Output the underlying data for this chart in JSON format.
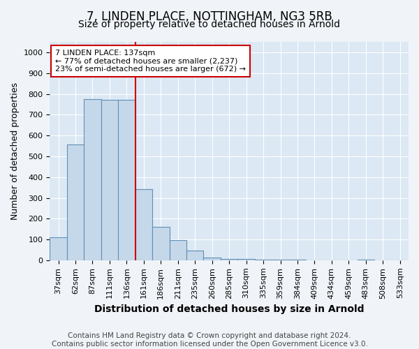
{
  "title": "7, LINDEN PLACE, NOTTINGHAM, NG3 5RB",
  "subtitle": "Size of property relative to detached houses in Arnold",
  "xlabel": "Distribution of detached houses by size in Arnold",
  "ylabel": "Number of detached properties",
  "categories": [
    "37sqm",
    "62sqm",
    "87sqm",
    "111sqm",
    "136sqm",
    "161sqm",
    "186sqm",
    "211sqm",
    "235sqm",
    "260sqm",
    "285sqm",
    "310sqm",
    "335sqm",
    "359sqm",
    "384sqm",
    "409sqm",
    "434sqm",
    "459sqm",
    "483sqm",
    "508sqm",
    "533sqm"
  ],
  "values": [
    110,
    557,
    775,
    770,
    770,
    343,
    162,
    97,
    48,
    12,
    8,
    5,
    4,
    3,
    2,
    0,
    0,
    0,
    4,
    0,
    0
  ],
  "bar_color": "#c5d8ea",
  "bar_edge_color": "#5f8fb4",
  "vline_x": 4.5,
  "vline_color": "#cc0000",
  "annotation_text": "7 LINDEN PLACE: 137sqm\n← 77% of detached houses are smaller (2,237)\n23% of semi-detached houses are larger (672) →",
  "annotation_box_color": "#ffffff",
  "annotation_border_color": "#cc0000",
  "ylim": [
    0,
    1050
  ],
  "yticks": [
    0,
    100,
    200,
    300,
    400,
    500,
    600,
    700,
    800,
    900,
    1000
  ],
  "bg_color": "#dce8f4",
  "plot_bg_color": "#dce8f4",
  "footer": "Contains HM Land Registry data © Crown copyright and database right 2024.\nContains public sector information licensed under the Open Government Licence v3.0.",
  "title_fontsize": 12,
  "subtitle_fontsize": 10,
  "xlabel_fontsize": 10,
  "ylabel_fontsize": 9,
  "tick_fontsize": 8,
  "annot_fontsize": 8,
  "footer_fontsize": 7.5
}
